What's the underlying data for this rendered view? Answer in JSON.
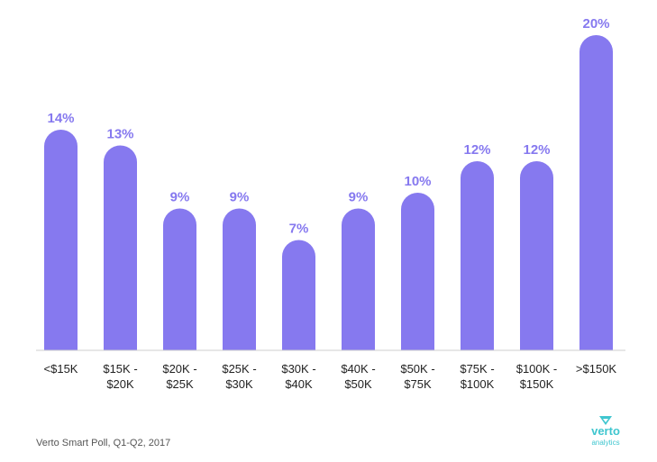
{
  "chart_data": {
    "type": "bar",
    "categories": [
      [
        "<$15K"
      ],
      [
        "$15K -",
        "$20K"
      ],
      [
        "$20K -",
        "$25K"
      ],
      [
        "$25K -",
        "$30K"
      ],
      [
        "$30K -",
        "$40K"
      ],
      [
        "$40K -",
        "$50K"
      ],
      [
        "$50K -",
        "$75K"
      ],
      [
        "$75K -",
        "$100K"
      ],
      [
        "$100K -",
        "$150K"
      ],
      [
        ">$150K"
      ]
    ],
    "values": [
      14,
      13,
      9,
      9,
      7,
      9,
      10,
      12,
      12,
      20
    ],
    "value_labels": [
      "14%",
      "13%",
      "9%",
      "9%",
      "7%",
      "9%",
      "10%",
      "12%",
      "12%",
      "20%"
    ],
    "ylim": [
      0,
      20
    ],
    "grid": false,
    "bar_color": "#8679ef",
    "label_color": "#8679ef"
  },
  "footer": {
    "source": "Verto Smart Poll, Q1-Q2, 2017",
    "logo_word": "verto",
    "logo_subword": "analytics",
    "logo_color": "#3fc6cf"
  }
}
